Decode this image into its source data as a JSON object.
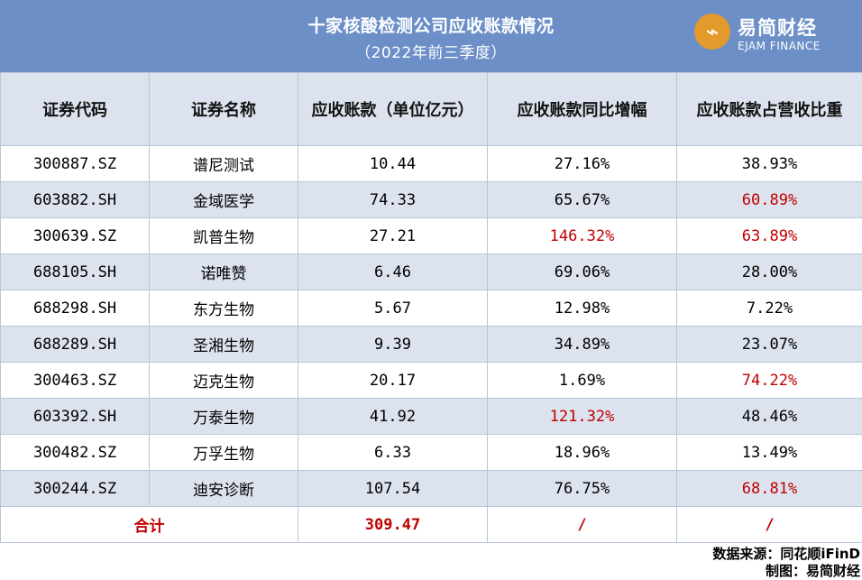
{
  "header": {
    "title": "十家核酸检测公司应收账款情况",
    "subtitle": "（2022年前三季度）",
    "logo_glyph": "⌁",
    "logo_cn": "易简财经",
    "logo_en": "EJAM FINANCE",
    "bg_color": "#6C8FC8",
    "logo_color": "#E39A2D"
  },
  "table": {
    "columns": [
      "证券代码",
      "证券名称",
      "应收账款（单位亿元）",
      "应收账款同比增幅",
      "应收账款占营收比重"
    ],
    "rows": [
      {
        "code": "300887.SZ",
        "name": "谱尼测试",
        "amount": "10.44",
        "yoy": "27.16%",
        "ratio": "38.93%",
        "yoy_red": false,
        "ratio_red": false
      },
      {
        "code": "603882.SH",
        "name": "金域医学",
        "amount": "74.33",
        "yoy": "65.67%",
        "ratio": "60.89%",
        "yoy_red": false,
        "ratio_red": true
      },
      {
        "code": "300639.SZ",
        "name": "凯普生物",
        "amount": "27.21",
        "yoy": "146.32%",
        "ratio": "63.89%",
        "yoy_red": true,
        "ratio_red": true
      },
      {
        "code": "688105.SH",
        "name": "诺唯赞",
        "amount": "6.46",
        "yoy": "69.06%",
        "ratio": "28.00%",
        "yoy_red": false,
        "ratio_red": false
      },
      {
        "code": "688298.SH",
        "name": "东方生物",
        "amount": "5.67",
        "yoy": "12.98%",
        "ratio": "7.22%",
        "yoy_red": false,
        "ratio_red": false
      },
      {
        "code": "688289.SH",
        "name": "圣湘生物",
        "amount": "9.39",
        "yoy": "34.89%",
        "ratio": "23.07%",
        "yoy_red": false,
        "ratio_red": false
      },
      {
        "code": "300463.SZ",
        "name": "迈克生物",
        "amount": "20.17",
        "yoy": "1.69%",
        "ratio": "74.22%",
        "yoy_red": false,
        "ratio_red": true
      },
      {
        "code": "603392.SH",
        "name": "万泰生物",
        "amount": "41.92",
        "yoy": "121.32%",
        "ratio": "48.46%",
        "yoy_red": true,
        "ratio_red": false
      },
      {
        "code": "300482.SZ",
        "name": "万孚生物",
        "amount": "6.33",
        "yoy": "18.96%",
        "ratio": "13.49%",
        "yoy_red": false,
        "ratio_red": false
      },
      {
        "code": "300244.SZ",
        "name": "迪安诊断",
        "amount": "107.54",
        "yoy": "76.75%",
        "ratio": "68.81%",
        "yoy_red": false,
        "ratio_red": true
      }
    ],
    "total": {
      "label": "合计",
      "amount": "309.47",
      "yoy": "/",
      "ratio": "/"
    }
  },
  "footer": {
    "source": "数据来源：同花顺iFinD",
    "maker": "制图：易简财经"
  },
  "colors": {
    "header_row": "#DCE3EE",
    "stripe": "#DCE3EE",
    "highlight_red": "#C00000"
  }
}
